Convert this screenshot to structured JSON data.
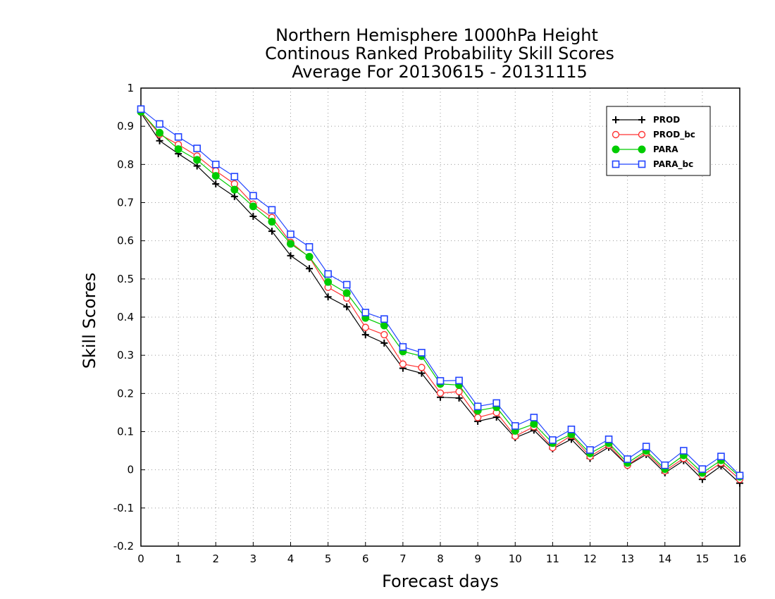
{
  "chart_data": {
    "type": "line",
    "title": [
      "Northern Hemisphere 1000hPa Height",
      "Continous Ranked Probability Skill Scores",
      "Average For 20130615 - 20131115"
    ],
    "xlabel": "Forecast days",
    "ylabel": "Skill Scores",
    "xlim": [
      0,
      16
    ],
    "ylim": [
      -0.2,
      1
    ],
    "xticks": [
      "0",
      "1",
      "2",
      "3",
      "4",
      "5",
      "6",
      "7",
      "8",
      "9",
      "10",
      "11",
      "12",
      "13",
      "14",
      "15",
      "16"
    ],
    "yticks": [
      "-0.2",
      "-0.1",
      "0",
      "0.1",
      "0.2",
      "0.3",
      "0.4",
      "0.5",
      "0.6",
      "0.7",
      "0.8",
      "0.9",
      "1"
    ],
    "grid": true,
    "legend_position": "top-right",
    "x": [
      0,
      0.5,
      1,
      1.5,
      2,
      2.5,
      3,
      3.5,
      4,
      4.5,
      5,
      5.5,
      6,
      6.5,
      7,
      7.5,
      8,
      8.5,
      9,
      9.5,
      10,
      10.5,
      11,
      11.5,
      12,
      12.5,
      13,
      13.5,
      14,
      14.5,
      15,
      15.5,
      16
    ],
    "series": [
      {
        "name": "PROD",
        "color": "#000000",
        "marker": "plus",
        "values": [
          0.935,
          0.862,
          0.828,
          0.796,
          0.749,
          0.716,
          0.664,
          0.625,
          0.561,
          0.527,
          0.453,
          0.427,
          0.354,
          0.332,
          0.266,
          0.253,
          0.19,
          0.188,
          0.127,
          0.138,
          0.084,
          0.104,
          0.055,
          0.08,
          0.03,
          0.059,
          0.011,
          0.04,
          -0.008,
          0.024,
          -0.025,
          0.01,
          -0.035
        ]
      },
      {
        "name": "PROD_bc",
        "color": "#ff3333",
        "marker": "open-circle",
        "values": [
          0.937,
          0.879,
          0.852,
          0.822,
          0.783,
          0.749,
          0.696,
          0.661,
          0.596,
          0.557,
          0.478,
          0.45,
          0.373,
          0.354,
          0.277,
          0.268,
          0.201,
          0.205,
          0.137,
          0.15,
          0.088,
          0.113,
          0.058,
          0.09,
          0.035,
          0.065,
          0.012,
          0.045,
          -0.003,
          0.03,
          -0.015,
          0.018,
          -0.025
        ]
      },
      {
        "name": "PARA",
        "color": "#00cc00",
        "marker": "filled-circle",
        "values": [
          0.938,
          0.883,
          0.84,
          0.812,
          0.77,
          0.734,
          0.69,
          0.65,
          0.592,
          0.558,
          0.492,
          0.463,
          0.398,
          0.378,
          0.31,
          0.298,
          0.225,
          0.222,
          0.155,
          0.164,
          0.102,
          0.12,
          0.07,
          0.093,
          0.043,
          0.07,
          0.018,
          0.05,
          0.002,
          0.038,
          -0.008,
          0.025,
          -0.018
        ]
      },
      {
        "name": "PARA_bc",
        "color": "#2244ff",
        "marker": "open-square",
        "values": [
          0.945,
          0.906,
          0.872,
          0.842,
          0.8,
          0.768,
          0.718,
          0.681,
          0.617,
          0.584,
          0.513,
          0.485,
          0.412,
          0.395,
          0.322,
          0.307,
          0.233,
          0.234,
          0.166,
          0.175,
          0.115,
          0.137,
          0.078,
          0.106,
          0.052,
          0.08,
          0.028,
          0.061,
          0.012,
          0.05,
          0.002,
          0.035,
          -0.015
        ]
      }
    ]
  }
}
